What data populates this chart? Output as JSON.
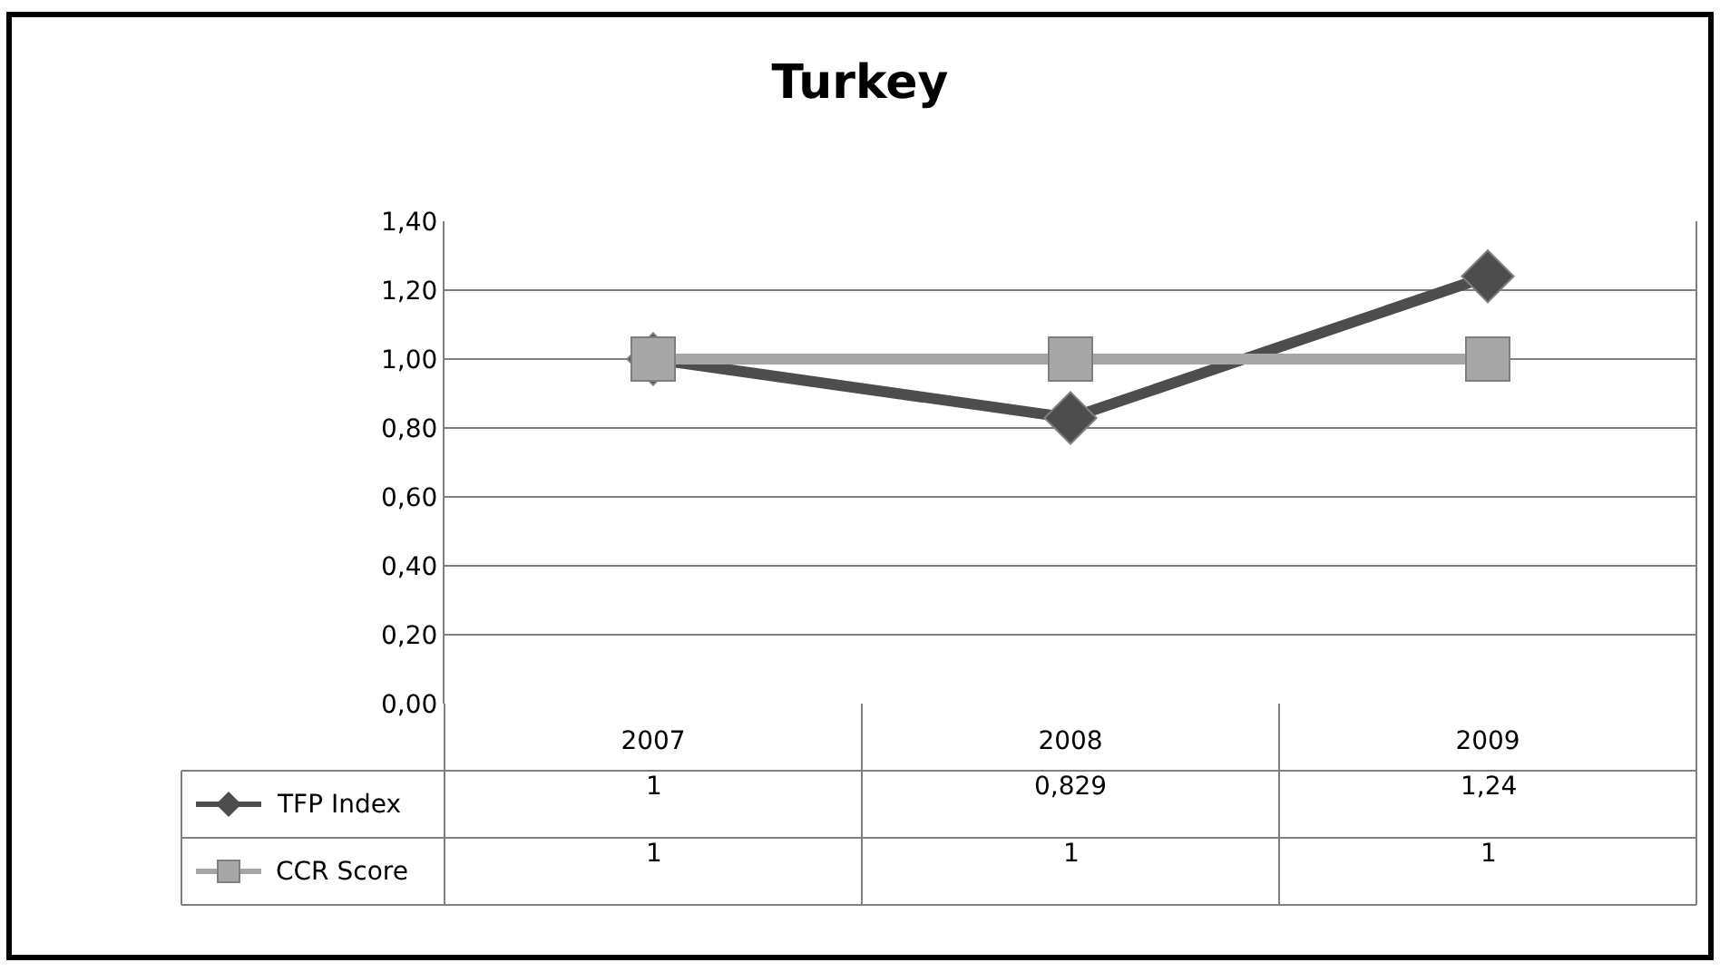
{
  "chart_data": {
    "type": "line",
    "title": "Turkey",
    "categories": [
      "2007",
      "2008",
      "2009"
    ],
    "series": [
      {
        "name": "TFP Index",
        "color": "#4d4d4d",
        "marker": "diamond",
        "values": [
          1,
          0.829,
          1.24
        ],
        "value_labels": [
          "1",
          "0,829",
          "1,24"
        ]
      },
      {
        "name": "CCR Score",
        "color": "#a6a6a6",
        "marker": "square",
        "values": [
          1,
          1,
          1
        ],
        "value_labels": [
          "1",
          "1",
          "1"
        ]
      }
    ],
    "ylim": [
      0,
      1.4
    ],
    "yticks": [
      {
        "value": 0,
        "label": "0,00"
      },
      {
        "value": 0.2,
        "label": "0,20"
      },
      {
        "value": 0.4,
        "label": "0,40"
      },
      {
        "value": 0.6,
        "label": "0,60"
      },
      {
        "value": 0.8,
        "label": "0,80"
      },
      {
        "value": 1,
        "label": "1,00"
      },
      {
        "value": 1.2,
        "label": "1,20"
      },
      {
        "value": 1.4,
        "label": "1,40"
      }
    ],
    "grid": "y",
    "legend": "bottom"
  }
}
